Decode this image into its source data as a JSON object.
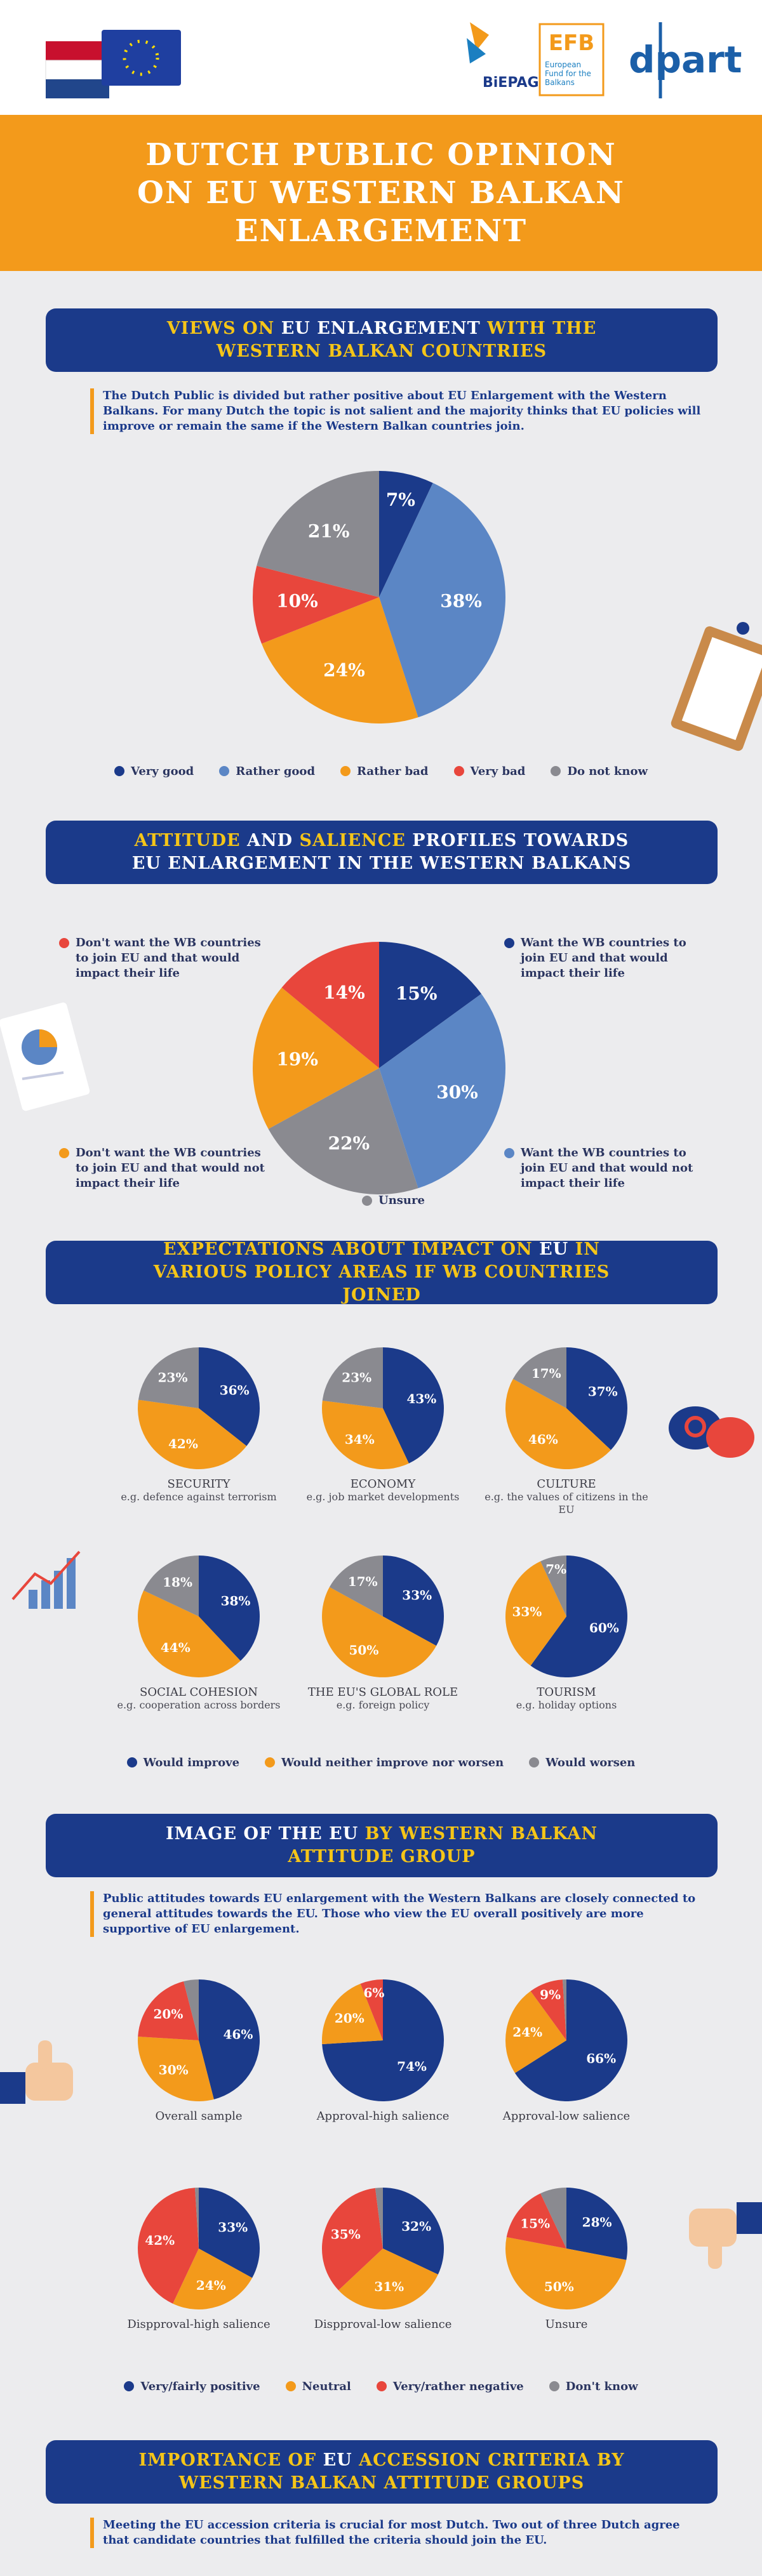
{
  "header": {
    "title_lines": [
      "DUTCH PUBLIC OPINION",
      "ON EU WESTERN BALKAN",
      "ENLARGEMENT"
    ],
    "logos": {
      "biepag": "BiEPAG",
      "efb": "EFB",
      "efb_name": "European Fund for the Balkans",
      "dpart": "dpart"
    }
  },
  "chart_data": [
    {
      "type": "pie",
      "title": [
        {
          "text": "VIEWS ON ",
          "color": "#f5c518"
        },
        {
          "text": "EU ENLARGEMENT",
          "color": "#ffffff"
        },
        {
          "text": " WITH THE WESTERN BALKAN COUNTRIES",
          "color": "#f5c518"
        }
      ],
      "description": "The Dutch Public is divided but rather positive about EU Enlargement with the Western Balkans. For many Dutch the topic is not salient and the majority thinks that EU policies will improve or remain the same if the Western Balkan countries join.",
      "legend": "bottom",
      "categories": [
        "Very good",
        "Rather good",
        "Rather bad",
        "Very bad",
        "Do not know"
      ],
      "colors": [
        "#1b3a8a",
        "#5b86c5",
        "#f39a1b",
        "#e8463c",
        "#8a8a90"
      ],
      "pies": [
        {
          "values": [
            7,
            38,
            24,
            10,
            21
          ],
          "value_labels": [
            "7%",
            "38%",
            "24%",
            "10%",
            "21%"
          ]
        }
      ]
    },
    {
      "type": "pie",
      "title": [
        {
          "text": "ATTITUDE",
          "color": "#f5c518"
        },
        {
          "text": " AND ",
          "color": "#ffffff"
        },
        {
          "text": "SALIENCE",
          "color": "#f5c518"
        },
        {
          "text": " PROFILES TOWARDS EU ENLARGEMENT IN THE WESTERN BALKANS",
          "color": "#ffffff"
        }
      ],
      "legend": "corners",
      "categories": [
        "Want the WB countries to join EU and that would impact their life",
        "Want the WB countries to join EU and that would not impact their life",
        "Unsure",
        "Don't want the WB countries to join EU and that would not impact their life",
        "Don't want the WB countries to join EU and that would impact their life"
      ],
      "colors": [
        "#1b3a8a",
        "#5b86c5",
        "#8a8a90",
        "#f39a1b",
        "#e8463c"
      ],
      "pies": [
        {
          "values": [
            15,
            30,
            22,
            19,
            14
          ],
          "value_labels": [
            "15%",
            "30%",
            "22%",
            "19%",
            "14%"
          ]
        }
      ]
    },
    {
      "type": "pie",
      "title": [
        {
          "text": "EXPECTATIONS ABOUT IMPACT ON ",
          "color": "#f5c518"
        },
        {
          "text": "EU",
          "color": "#ffffff"
        },
        {
          "text": " IN VARIOUS POLICY AREAS IF WB COUNTRIES JOINED",
          "color": "#f5c518"
        }
      ],
      "legend": "bottom",
      "categories": [
        "Would improve",
        "Would neither improve nor worsen",
        "Would worsen"
      ],
      "colors": [
        "#1b3a8a",
        "#f39a1b",
        "#8a8a90"
      ],
      "pies": [
        {
          "title": "SECURITY",
          "subtitle": "e.g. defence against terrorism",
          "values": [
            36,
            42,
            23
          ],
          "value_labels": [
            "36%",
            "42%",
            "23%"
          ]
        },
        {
          "title": "ECONOMY",
          "subtitle": "e.g. job market developments",
          "values": [
            43,
            34,
            23
          ],
          "value_labels": [
            "43%",
            "34%",
            "23%"
          ]
        },
        {
          "title": "CULTURE",
          "subtitle": "e.g. the values of citizens in the EU",
          "values": [
            37,
            46,
            17
          ],
          "value_labels": [
            "37%",
            "46%",
            "17%"
          ]
        },
        {
          "title": "SOCIAL COHESION",
          "subtitle": "e.g. cooperation across borders",
          "values": [
            38,
            44,
            18
          ],
          "value_labels": [
            "38%",
            "44%",
            "18%"
          ]
        },
        {
          "title": "THE EU'S GLOBAL ROLE",
          "subtitle": "e.g. foreign policy",
          "values": [
            33,
            50,
            17
          ],
          "value_labels": [
            "33%",
            "50%",
            "17%"
          ]
        },
        {
          "title": "TOURISM",
          "subtitle": "e.g. holiday options",
          "values": [
            60,
            33,
            7
          ],
          "value_labels": [
            "60%",
            "33%",
            "7%"
          ]
        }
      ]
    },
    {
      "type": "pie",
      "title": [
        {
          "text": "IMAGE OF THE EU",
          "color": "#ffffff"
        },
        {
          "text": " BY WESTERN BALKAN ATTITUDE GROUP",
          "color": "#f5c518"
        }
      ],
      "description": "Public attitudes towards EU enlargement with the Western Balkans are closely connected to general attitudes towards the EU. Those who view the EU overall positively are more supportive of EU enlargement.",
      "legend": "bottom",
      "categories": [
        "Very/fairly positive",
        "Neutral",
        "Very/rather negative",
        "Don't know"
      ],
      "colors": [
        "#1b3a8a",
        "#f39a1b",
        "#e8463c",
        "#8a8a90"
      ],
      "pies": [
        {
          "title": "Overall sample",
          "values": [
            46,
            30,
            20,
            4
          ],
          "value_labels": [
            "46%",
            "30%",
            "20%",
            null
          ]
        },
        {
          "title": "Approval-high salience",
          "values": [
            74,
            20,
            6,
            0
          ],
          "value_labels": [
            "74%",
            "20%",
            "6%",
            null
          ]
        },
        {
          "title": "Approval-low salience",
          "values": [
            66,
            24,
            9,
            1
          ],
          "value_labels": [
            "66%",
            "24%",
            "9%",
            null
          ]
        },
        {
          "title": "Dispproval-high salience",
          "values": [
            33,
            24,
            42,
            1
          ],
          "value_labels": [
            "33%",
            "24%",
            "42%",
            null
          ]
        },
        {
          "title": "Dispproval-low salience",
          "values": [
            32,
            31,
            35,
            2
          ],
          "value_labels": [
            "32%",
            "31%",
            "35%",
            null
          ]
        },
        {
          "title": "Unsure",
          "values": [
            28,
            50,
            15,
            7
          ],
          "value_labels": [
            "28%",
            "50%",
            "15%",
            null
          ]
        }
      ]
    }
  ],
  "closing_section": {
    "title": [
      {
        "text": "IMPORTANCE OF ",
        "color": "#f5c518"
      },
      {
        "text": "EU",
        "color": "#ffffff"
      },
      {
        "text": " ACCESSION CRITERIA BY WESTERN BALKAN ATTITUDE GROUPS",
        "color": "#f5c518"
      }
    ],
    "description": "Meeting the EU accession criteria is crucial for most Dutch. Two out of three Dutch agree that candidate countries that fulfilled the criteria should join the EU."
  }
}
